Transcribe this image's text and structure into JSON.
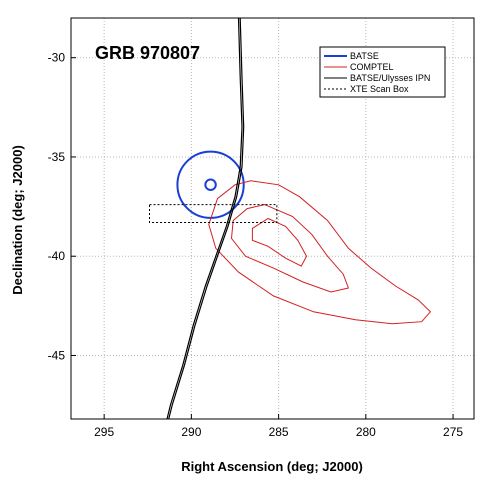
{
  "chart_data": {
    "type": "line",
    "title": "GRB 970807",
    "xlabel": "Right Ascension (deg; J2000)",
    "ylabel": "Declination (deg; J2000)",
    "xlim": [
      296.9,
      273.8
    ],
    "ylim": [
      -48.2,
      -28.0
    ],
    "x_reversed": true,
    "x_ticks": [
      295,
      290,
      285,
      280,
      275
    ],
    "y_ticks": [
      -30,
      -35,
      -40,
      -45
    ],
    "grid": true,
    "legend_position": "top-right",
    "colors": {
      "batse": "#1a3fd6",
      "comptel": "#d42020",
      "ipn": "#000000",
      "xte": "#000000"
    },
    "series": [
      {
        "name": "BATSE",
        "kind": "circles",
        "center": [
          288.9,
          -36.4
        ],
        "radii_deg": [
          1.9,
          0.3
        ]
      },
      {
        "name": "COMPTEL",
        "kind": "contours",
        "contours": [
          [
            [
              286.6,
              -36.2
            ],
            [
              285.0,
              -36.4
            ],
            [
              283.8,
              -37.0
            ],
            [
              282.2,
              -38.2
            ],
            [
              281.0,
              -39.6
            ],
            [
              279.7,
              -40.6
            ],
            [
              278.3,
              -41.5
            ],
            [
              277.0,
              -42.2
            ],
            [
              276.3,
              -42.8
            ],
            [
              276.8,
              -43.3
            ],
            [
              278.5,
              -43.4
            ],
            [
              280.6,
              -43.2
            ],
            [
              283.0,
              -42.8
            ],
            [
              285.3,
              -42.0
            ],
            [
              287.3,
              -40.8
            ],
            [
              288.6,
              -39.6
            ],
            [
              289.0,
              -38.4
            ],
            [
              288.5,
              -37.1
            ],
            [
              287.5,
              -36.4
            ],
            [
              286.6,
              -36.2
            ]
          ],
          [
            [
              285.8,
              -37.4
            ],
            [
              284.2,
              -38.0
            ],
            [
              283.1,
              -38.9
            ],
            [
              282.2,
              -40.0
            ],
            [
              281.3,
              -40.9
            ],
            [
              281.0,
              -41.6
            ],
            [
              282.0,
              -41.8
            ],
            [
              283.6,
              -41.3
            ],
            [
              285.3,
              -40.6
            ],
            [
              286.9,
              -40.0
            ],
            [
              287.7,
              -39.1
            ],
            [
              287.6,
              -38.2
            ],
            [
              286.8,
              -37.6
            ],
            [
              285.8,
              -37.4
            ]
          ],
          [
            [
              285.6,
              -38.1
            ],
            [
              284.6,
              -38.5
            ],
            [
              283.9,
              -39.2
            ],
            [
              283.4,
              -40.0
            ],
            [
              283.7,
              -40.5
            ],
            [
              284.6,
              -40.1
            ],
            [
              285.6,
              -39.5
            ],
            [
              286.5,
              -39.2
            ],
            [
              286.5,
              -38.6
            ],
            [
              285.6,
              -38.1
            ]
          ]
        ]
      },
      {
        "name": "BATSE/Ulysses IPN",
        "kind": "annulus",
        "curves": [
          [
            [
              287.2,
              -28.0
            ],
            [
              287.1,
              -31.0
            ],
            [
              287.0,
              -33.5
            ],
            [
              287.1,
              -35.5
            ],
            [
              287.4,
              -37.0
            ],
            [
              287.9,
              -38.5
            ],
            [
              288.5,
              -40.0
            ],
            [
              289.1,
              -41.5
            ],
            [
              289.8,
              -43.5
            ],
            [
              290.4,
              -45.5
            ],
            [
              291.1,
              -47.5
            ],
            [
              291.3,
              -48.2
            ]
          ],
          [
            [
              287.3,
              -28.0
            ],
            [
              287.2,
              -31.0
            ],
            [
              287.1,
              -33.5
            ],
            [
              287.2,
              -35.5
            ],
            [
              287.5,
              -37.0
            ],
            [
              288.0,
              -38.5
            ],
            [
              288.6,
              -40.0
            ],
            [
              289.2,
              -41.5
            ],
            [
              289.9,
              -43.5
            ],
            [
              290.5,
              -45.5
            ],
            [
              291.2,
              -47.5
            ],
            [
              291.4,
              -48.2
            ]
          ]
        ]
      },
      {
        "name": "XTE Scan Box",
        "kind": "box",
        "ra_range": [
          292.4,
          285.1
        ],
        "dec_range": [
          -37.4,
          -38.3
        ]
      }
    ]
  }
}
